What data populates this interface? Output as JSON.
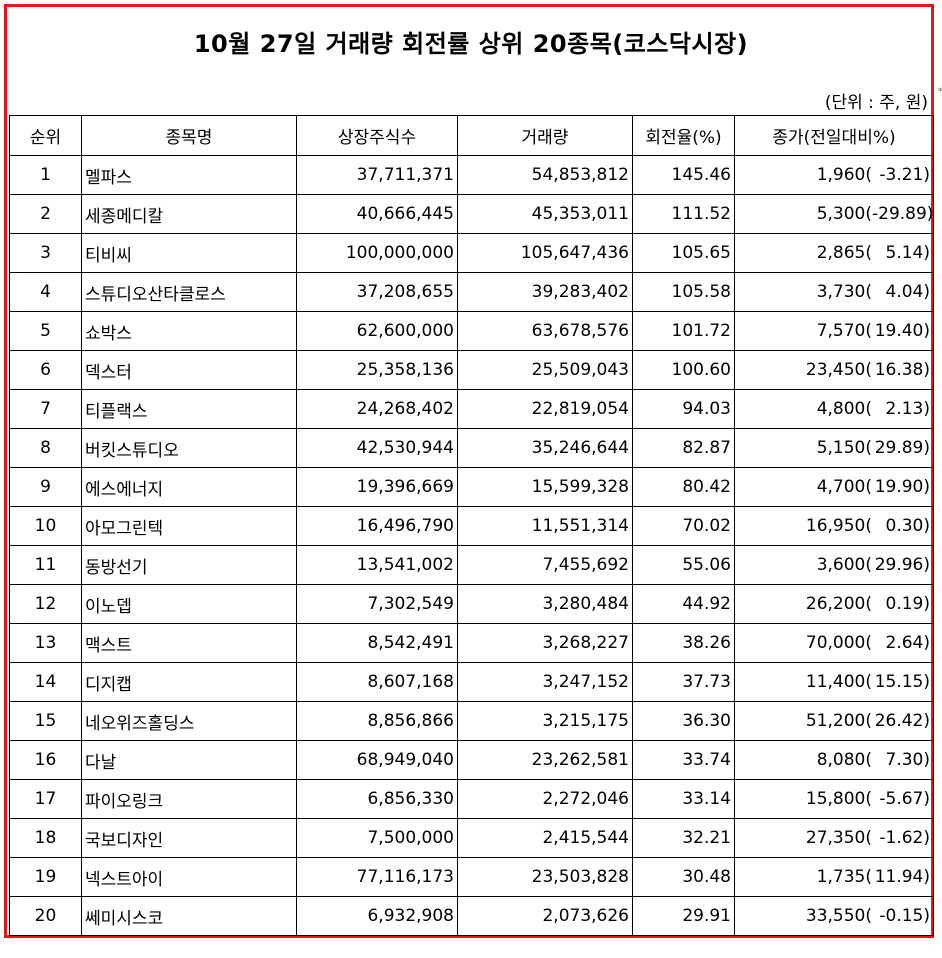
{
  "title": "10월 27일 거래량 회전률 상위 20종목(코스닥시장)",
  "unit": "(단위 : 주, 원)",
  "mark": "*",
  "headers": [
    "순위",
    "종목명",
    "상장주식수",
    "거래량",
    "회전율(%)",
    "종가(전일대비%)"
  ],
  "rows": [
    {
      "rank": "1",
      "name": "멜파스",
      "listed": "37,711,371",
      "volume": "54,853,812",
      "turnover": "145.46",
      "close": "1,960(",
      "change": "-3.21)"
    },
    {
      "rank": "2",
      "name": "세종메디칼",
      "listed": "40,666,445",
      "volume": "45,353,011",
      "turnover": "111.52",
      "close": "5,300(",
      "change": "-29.89)"
    },
    {
      "rank": "3",
      "name": "티비씨",
      "listed": "100,000,000",
      "volume": "105,647,436",
      "turnover": "105.65",
      "close": "2,865(",
      "change": "5.14)"
    },
    {
      "rank": "4",
      "name": "스튜디오산타클로스",
      "listed": "37,208,655",
      "volume": "39,283,402",
      "turnover": "105.58",
      "close": "3,730(",
      "change": "4.04)"
    },
    {
      "rank": "5",
      "name": "쇼박스",
      "listed": "62,600,000",
      "volume": "63,678,576",
      "turnover": "101.72",
      "close": "7,570(",
      "change": "19.40)"
    },
    {
      "rank": "6",
      "name": "덱스터",
      "listed": "25,358,136",
      "volume": "25,509,043",
      "turnover": "100.60",
      "close": "23,450(",
      "change": "16.38)"
    },
    {
      "rank": "7",
      "name": "티플랙스",
      "listed": "24,268,402",
      "volume": "22,819,054",
      "turnover": "94.03",
      "close": "4,800(",
      "change": "2.13)"
    },
    {
      "rank": "8",
      "name": "버킷스튜디오",
      "listed": "42,530,944",
      "volume": "35,246,644",
      "turnover": "82.87",
      "close": "5,150(",
      "change": "29.89)"
    },
    {
      "rank": "9",
      "name": "에스에너지",
      "listed": "19,396,669",
      "volume": "15,599,328",
      "turnover": "80.42",
      "close": "4,700(",
      "change": "19.90)"
    },
    {
      "rank": "10",
      "name": "아모그린텍",
      "listed": "16,496,790",
      "volume": "11,551,314",
      "turnover": "70.02",
      "close": "16,950(",
      "change": "0.30)"
    },
    {
      "rank": "11",
      "name": "동방선기",
      "listed": "13,541,002",
      "volume": "7,455,692",
      "turnover": "55.06",
      "close": "3,600(",
      "change": "29.96)"
    },
    {
      "rank": "12",
      "name": "이노뎁",
      "listed": "7,302,549",
      "volume": "3,280,484",
      "turnover": "44.92",
      "close": "26,200(",
      "change": "0.19)"
    },
    {
      "rank": "13",
      "name": "맥스트",
      "listed": "8,542,491",
      "volume": "3,268,227",
      "turnover": "38.26",
      "close": "70,000(",
      "change": "2.64)"
    },
    {
      "rank": "14",
      "name": "디지캡",
      "listed": "8,607,168",
      "volume": "3,247,152",
      "turnover": "37.73",
      "close": "11,400(",
      "change": "15.15)"
    },
    {
      "rank": "15",
      "name": "네오위즈홀딩스",
      "listed": "8,856,866",
      "volume": "3,215,175",
      "turnover": "36.30",
      "close": "51,200(",
      "change": "26.42)"
    },
    {
      "rank": "16",
      "name": "다날",
      "listed": "68,949,040",
      "volume": "23,262,581",
      "turnover": "33.74",
      "close": "8,080(",
      "change": "7.30)"
    },
    {
      "rank": "17",
      "name": "파이오링크",
      "listed": "6,856,330",
      "volume": "2,272,046",
      "turnover": "33.14",
      "close": "15,800(",
      "change": "-5.67)"
    },
    {
      "rank": "18",
      "name": "국보디자인",
      "listed": "7,500,000",
      "volume": "2,415,544",
      "turnover": "32.21",
      "close": "27,350(",
      "change": "-1.62)"
    },
    {
      "rank": "19",
      "name": "넥스트아이",
      "listed": "77,116,173",
      "volume": "23,503,828",
      "turnover": "30.48",
      "close": "1,735(",
      "change": "11.94)"
    },
    {
      "rank": "20",
      "name": "쎄미시스코",
      "listed": "6,932,908",
      "volume": "2,073,626",
      "turnover": "29.91",
      "close": "33,550(",
      "change": "-0.15)"
    }
  ],
  "colors": {
    "frame": "#e01818"
  }
}
